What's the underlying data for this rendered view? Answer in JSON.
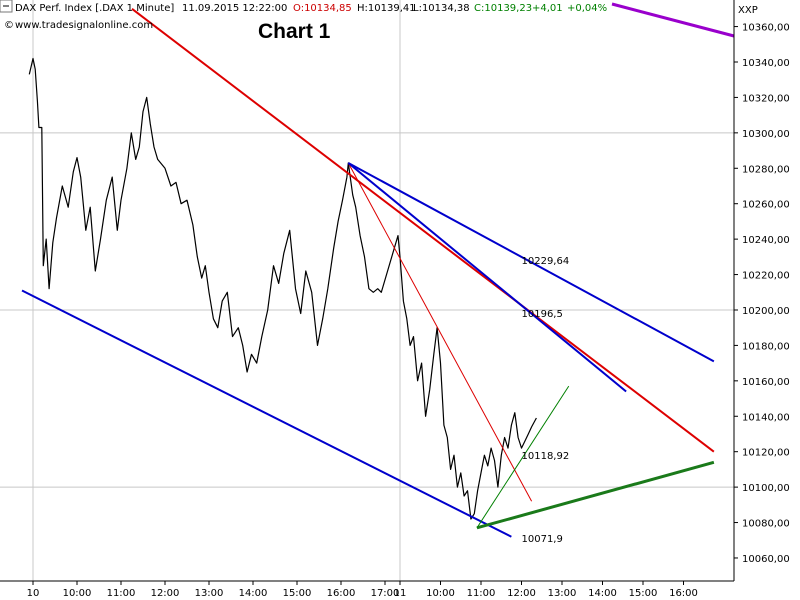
{
  "header": {
    "instrument": "DAX Perf. Index [.DAX  1 Minute]",
    "datetime": "11.09.2015 12:22:00",
    "open": "O:10134,85",
    "high": "H:10139,41",
    "low": "L:10134,38",
    "close": "C:10139,23",
    "change": "+4,01",
    "change_pct": "+0,04%",
    "source": "www.tradesignalonline.com",
    "exchange": "XXP"
  },
  "colors": {
    "price": "#000000",
    "open": "#cc0000",
    "close": "#008000",
    "blue_line": "#0000cc",
    "red_line": "#dd0000",
    "green_line": "#1a7a1a",
    "purple_line": "#9900cc",
    "grid": "#c8c8c8",
    "label_blue": "#1a1aa0",
    "label_red": "#cc0000",
    "label_green": "#2a7a2a"
  },
  "chart_data": {
    "type": "line",
    "title": "Chart 1",
    "y_axis": {
      "range": [
        10047,
        10375
      ],
      "ticks": [
        "10060,00",
        "10080,00",
        "10100,00",
        "10120,00",
        "10140,00",
        "10160,00",
        "10180,00",
        "10200,00",
        "10220,00",
        "10240,00",
        "10260,00",
        "10280,00",
        "10300,00",
        "10320,00",
        "10340,00",
        "10360,00"
      ],
      "tick_values": [
        10060,
        10080,
        10100,
        10120,
        10140,
        10160,
        10180,
        10200,
        10220,
        10240,
        10260,
        10280,
        10300,
        10320,
        10340,
        10360
      ],
      "grid_values": [
        10100,
        10200,
        10300
      ]
    },
    "x_axis": {
      "ticks": [
        {
          "label": "10",
          "day": 10,
          "time": "09:00"
        },
        {
          "label": "10:00",
          "day": 10,
          "time": "10:00"
        },
        {
          "label": "11:00",
          "day": 10,
          "time": "11:00"
        },
        {
          "label": "12:00",
          "day": 10,
          "time": "12:00"
        },
        {
          "label": "13:00",
          "day": 10,
          "time": "13:00"
        },
        {
          "label": "14:00",
          "day": 10,
          "time": "14:00"
        },
        {
          "label": "15:00",
          "day": 10,
          "time": "15:00"
        },
        {
          "label": "16:00",
          "day": 10,
          "time": "16:00"
        },
        {
          "label": "17:00",
          "day": 10,
          "time": "17:00"
        },
        {
          "label": "11",
          "day": 11,
          "time": "09:00"
        },
        {
          "label": "10:00",
          "day": 11,
          "time": "10:00"
        },
        {
          "label": "11:00",
          "day": 11,
          "time": "11:00"
        },
        {
          "label": "12:00",
          "day": 11,
          "time": "12:00"
        },
        {
          "label": "13:00",
          "day": 11,
          "time": "13:00"
        },
        {
          "label": "14:00",
          "day": 11,
          "time": "14:00"
        },
        {
          "label": "15:00",
          "day": 11,
          "time": "15:00"
        },
        {
          "label": "16:00",
          "day": 11,
          "time": "16:00"
        }
      ],
      "grid_at": [
        "10",
        "11"
      ]
    },
    "series": [
      {
        "kind": "price",
        "points": [
          [
            "10",
            "08:55",
            10333
          ],
          [
            "10",
            "09:00",
            10342
          ],
          [
            "10",
            "09:03",
            10336
          ],
          [
            "10",
            "09:06",
            10318
          ],
          [
            "10",
            "09:08",
            10303
          ],
          [
            "10",
            "09:12",
            10303
          ],
          [
            "10",
            "09:14",
            10225
          ],
          [
            "10",
            "09:18",
            10240
          ],
          [
            "10",
            "09:22",
            10212
          ],
          [
            "10",
            "09:27",
            10238
          ],
          [
            "10",
            "09:32",
            10252
          ],
          [
            "10",
            "09:40",
            10270
          ],
          [
            "10",
            "09:48",
            10258
          ],
          [
            "10",
            "09:55",
            10278
          ],
          [
            "10",
            "10:00",
            10286
          ],
          [
            "10",
            "10:05",
            10275
          ],
          [
            "10",
            "10:12",
            10245
          ],
          [
            "10",
            "10:18",
            10258
          ],
          [
            "10",
            "10:25",
            10222
          ],
          [
            "10",
            "10:32",
            10240
          ],
          [
            "10",
            "10:40",
            10262
          ],
          [
            "10",
            "10:48",
            10275
          ],
          [
            "10",
            "10:55",
            10245
          ],
          [
            "10",
            "11:00",
            10262
          ],
          [
            "10",
            "11:08",
            10280
          ],
          [
            "10",
            "11:14",
            10300
          ],
          [
            "10",
            "11:20",
            10285
          ],
          [
            "10",
            "11:25",
            10292
          ],
          [
            "10",
            "11:30",
            10312
          ],
          [
            "10",
            "11:35",
            10320
          ],
          [
            "10",
            "11:40",
            10305
          ],
          [
            "10",
            "11:45",
            10292
          ],
          [
            "10",
            "11:50",
            10285
          ],
          [
            "10",
            "12:00",
            10280
          ],
          [
            "10",
            "12:08",
            10270
          ],
          [
            "10",
            "12:15",
            10272
          ],
          [
            "10",
            "12:22",
            10260
          ],
          [
            "10",
            "12:30",
            10262
          ],
          [
            "10",
            "12:38",
            10248
          ],
          [
            "10",
            "12:44",
            10230
          ],
          [
            "10",
            "12:50",
            10218
          ],
          [
            "10",
            "12:55",
            10225
          ],
          [
            "10",
            "13:00",
            10210
          ],
          [
            "10",
            "13:06",
            10195
          ],
          [
            "10",
            "13:12",
            10190
          ],
          [
            "10",
            "13:18",
            10205
          ],
          [
            "10",
            "13:25",
            10210
          ],
          [
            "10",
            "13:32",
            10185
          ],
          [
            "10",
            "13:40",
            10190
          ],
          [
            "10",
            "13:46",
            10180
          ],
          [
            "10",
            "13:52",
            10165
          ],
          [
            "10",
            "13:58",
            10175
          ],
          [
            "10",
            "14:05",
            10170
          ],
          [
            "10",
            "14:12",
            10185
          ],
          [
            "10",
            "14:20",
            10200
          ],
          [
            "10",
            "14:28",
            10225
          ],
          [
            "10",
            "14:35",
            10215
          ],
          [
            "10",
            "14:42",
            10232
          ],
          [
            "10",
            "14:50",
            10245
          ],
          [
            "10",
            "14:58",
            10212
          ],
          [
            "10",
            "15:05",
            10198
          ],
          [
            "10",
            "15:12",
            10222
          ],
          [
            "10",
            "15:20",
            10210
          ],
          [
            "10",
            "15:28",
            10180
          ],
          [
            "10",
            "15:35",
            10195
          ],
          [
            "10",
            "15:42",
            10212
          ],
          [
            "10",
            "15:50",
            10235
          ],
          [
            "10",
            "15:56",
            10250
          ],
          [
            "10",
            "16:02",
            10262
          ],
          [
            "10",
            "16:08",
            10275
          ],
          [
            "10",
            "16:10",
            10283
          ],
          [
            "10",
            "16:16",
            10265
          ],
          [
            "10",
            "16:20",
            10258
          ],
          [
            "10",
            "16:26",
            10242
          ],
          [
            "10",
            "16:32",
            10230
          ],
          [
            "10",
            "16:38",
            10212
          ],
          [
            "10",
            "16:44",
            10210
          ],
          [
            "10",
            "16:50",
            10212
          ],
          [
            "10",
            "16:55",
            10210
          ],
          [
            "11",
            "08:57",
            10242
          ],
          [
            "11",
            "09:00",
            10230
          ],
          [
            "11",
            "09:05",
            10205
          ],
          [
            "11",
            "09:10",
            10195
          ],
          [
            "11",
            "09:15",
            10180
          ],
          [
            "11",
            "09:20",
            10185
          ],
          [
            "11",
            "09:26",
            10160
          ],
          [
            "11",
            "09:32",
            10170
          ],
          [
            "11",
            "09:38",
            10140
          ],
          [
            "11",
            "09:44",
            10155
          ],
          [
            "11",
            "09:50",
            10175
          ],
          [
            "11",
            "09:55",
            10190
          ],
          [
            "11",
            "10:00",
            10170
          ],
          [
            "11",
            "10:05",
            10135
          ],
          [
            "11",
            "10:10",
            10128
          ],
          [
            "11",
            "10:15",
            10110
          ],
          [
            "11",
            "10:20",
            10118
          ],
          [
            "11",
            "10:25",
            10100
          ],
          [
            "11",
            "10:30",
            10108
          ],
          [
            "11",
            "10:35",
            10095
          ],
          [
            "11",
            "10:40",
            10098
          ],
          [
            "11",
            "10:45",
            10082
          ],
          [
            "11",
            "10:50",
            10085
          ],
          [
            "11",
            "10:55",
            10098
          ],
          [
            "11",
            "11:00",
            10108
          ],
          [
            "11",
            "11:05",
            10118
          ],
          [
            "11",
            "11:10",
            10112
          ],
          [
            "11",
            "11:15",
            10122
          ],
          [
            "11",
            "11:20",
            10115
          ],
          [
            "11",
            "11:25",
            10100
          ],
          [
            "11",
            "11:30",
            10118
          ],
          [
            "11",
            "11:35",
            10128
          ],
          [
            "11",
            "11:40",
            10122
          ],
          [
            "11",
            "11:45",
            10135
          ],
          [
            "11",
            "11:50",
            10142
          ],
          [
            "11",
            "11:55",
            10128
          ],
          [
            "11",
            "12:00",
            10122
          ],
          [
            "11",
            "12:05",
            10126
          ],
          [
            "11",
            "12:10",
            10130
          ],
          [
            "11",
            "12:15",
            10134
          ],
          [
            "11",
            "12:22",
            10139
          ]
        ]
      },
      {
        "kind": "blue_lower",
        "from": [
          "10",
          "08:45",
          10211
        ],
        "to": [
          "11",
          "11:45",
          10072
        ]
      },
      {
        "kind": "red_main",
        "from": [
          "10",
          "11:15",
          10370
        ],
        "to": [
          "11",
          "16:45",
          10120
        ]
      },
      {
        "kind": "red_thin",
        "from": [
          "10",
          "16:10",
          10283
        ],
        "to": [
          "11",
          "12:15",
          10092
        ]
      },
      {
        "kind": "green_main",
        "from": [
          "11",
          "10:54",
          10077
        ],
        "to": [
          "11",
          "16:45",
          10114
        ]
      },
      {
        "kind": "green_thin",
        "from": [
          "11",
          "10:54",
          10077
        ],
        "to": [
          "11",
          "13:10",
          10157
        ]
      },
      {
        "kind": "blue_steep",
        "from": [
          "10",
          "16:10",
          10283
        ],
        "to": [
          "11",
          "14:35",
          10154
        ]
      },
      {
        "kind": "blue_upper",
        "from": [
          "10",
          "16:10",
          10283
        ],
        "to": [
          "11",
          "16:45",
          10171
        ]
      }
    ],
    "annotations": [
      {
        "text": "10229,64",
        "color_key": "label_blue",
        "at": [
          "11",
          "12:00",
          10226
        ]
      },
      {
        "text": "10196,5",
        "color_key": "label_blue",
        "at": [
          "11",
          "12:00",
          10196
        ]
      },
      {
        "text": "10118,92",
        "color_key": "label_green",
        "at": [
          "11",
          "12:00",
          10116
        ]
      },
      {
        "text": "10071,9",
        "color_key": "label_red",
        "at": [
          "11",
          "12:00",
          10069
        ]
      }
    ]
  }
}
